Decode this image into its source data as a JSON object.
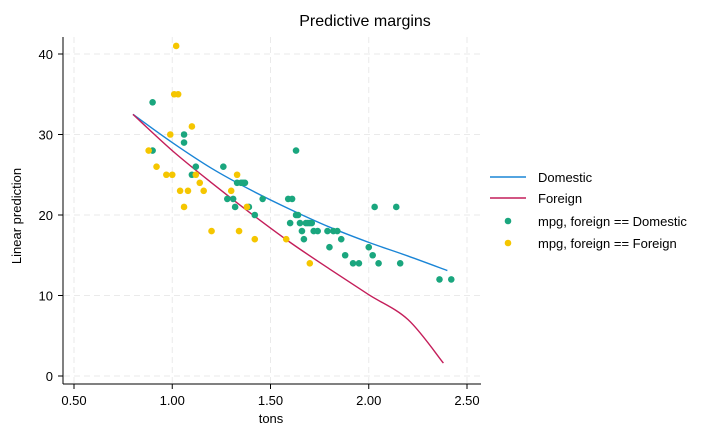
{
  "chart_data": {
    "type": "line",
    "title": "Predictive margins",
    "xlabel": "tons",
    "ylabel": "Linear prediction",
    "xlim": [
      0.5,
      2.5
    ],
    "ylim": [
      0,
      42
    ],
    "xticks": [
      "0.50",
      "1.00",
      "1.50",
      "2.00",
      "2.50"
    ],
    "yticks": [
      "0",
      "10",
      "20",
      "30",
      "40"
    ],
    "grid": true,
    "legend_position": "right",
    "series": [
      {
        "name": "Domestic",
        "kind": "line",
        "color": "#1a85d6",
        "points": [
          [
            0.8,
            32.5
          ],
          [
            1.0,
            29.0
          ],
          [
            1.2,
            25.8
          ],
          [
            1.4,
            23.1
          ],
          [
            1.6,
            20.7
          ],
          [
            1.8,
            18.5
          ],
          [
            2.0,
            16.6
          ],
          [
            2.2,
            14.9
          ],
          [
            2.4,
            13.1
          ]
        ]
      },
      {
        "name": "Foreign",
        "kind": "line",
        "color": "#c41e5a",
        "points": [
          [
            0.8,
            32.5
          ],
          [
            1.0,
            28.0
          ],
          [
            1.2,
            24.0
          ],
          [
            1.4,
            20.2
          ],
          [
            1.6,
            16.6
          ],
          [
            1.8,
            13.3
          ],
          [
            2.0,
            10.1
          ],
          [
            2.2,
            7.0
          ],
          [
            2.38,
            1.6
          ]
        ]
      },
      {
        "name": "mpg, foreign == Domestic",
        "kind": "scatter",
        "color": "#1aa67e",
        "points": [
          [
            0.9,
            34
          ],
          [
            0.9,
            28
          ],
          [
            1.06,
            30
          ],
          [
            1.06,
            29
          ],
          [
            1.1,
            25
          ],
          [
            1.12,
            26
          ],
          [
            1.26,
            26
          ],
          [
            1.28,
            22
          ],
          [
            1.31,
            22
          ],
          [
            1.32,
            21
          ],
          [
            1.33,
            24
          ],
          [
            1.35,
            24
          ],
          [
            1.36,
            24
          ],
          [
            1.37,
            24
          ],
          [
            1.39,
            21
          ],
          [
            1.42,
            20
          ],
          [
            1.46,
            22
          ],
          [
            1.59,
            22
          ],
          [
            1.6,
            19
          ],
          [
            1.61,
            22
          ],
          [
            1.63,
            20
          ],
          [
            1.64,
            20
          ],
          [
            1.63,
            28
          ],
          [
            1.65,
            19
          ],
          [
            1.66,
            18
          ],
          [
            1.67,
            17
          ],
          [
            1.68,
            19
          ],
          [
            1.69,
            19
          ],
          [
            1.7,
            19
          ],
          [
            1.71,
            19
          ],
          [
            1.72,
            18
          ],
          [
            1.74,
            18
          ],
          [
            1.79,
            18
          ],
          [
            1.8,
            16
          ],
          [
            1.82,
            18
          ],
          [
            1.84,
            18
          ],
          [
            1.86,
            17
          ],
          [
            1.88,
            15
          ],
          [
            1.92,
            14
          ],
          [
            1.95,
            14
          ],
          [
            2.0,
            16
          ],
          [
            2.02,
            15
          ],
          [
            2.03,
            21
          ],
          [
            2.05,
            14
          ],
          [
            2.14,
            21
          ],
          [
            2.16,
            14
          ],
          [
            2.36,
            12
          ],
          [
            2.42,
            12
          ]
        ]
      },
      {
        "name": "mpg, foreign == Foreign",
        "kind": "scatter",
        "color": "#f5c600",
        "points": [
          [
            0.88,
            28
          ],
          [
            0.92,
            26
          ],
          [
            0.97,
            25
          ],
          [
            0.99,
            30
          ],
          [
            1.0,
            25
          ],
          [
            1.02,
            41
          ],
          [
            1.01,
            35
          ],
          [
            1.03,
            35
          ],
          [
            1.04,
            23
          ],
          [
            1.06,
            21
          ],
          [
            1.08,
            23
          ],
          [
            1.1,
            31
          ],
          [
            1.12,
            25
          ],
          [
            1.14,
            24
          ],
          [
            1.16,
            23
          ],
          [
            1.2,
            18
          ],
          [
            1.3,
            23
          ],
          [
            1.33,
            25
          ],
          [
            1.34,
            18
          ],
          [
            1.38,
            21
          ],
          [
            1.42,
            17
          ],
          [
            1.58,
            17
          ],
          [
            1.7,
            14
          ]
        ]
      }
    ]
  }
}
